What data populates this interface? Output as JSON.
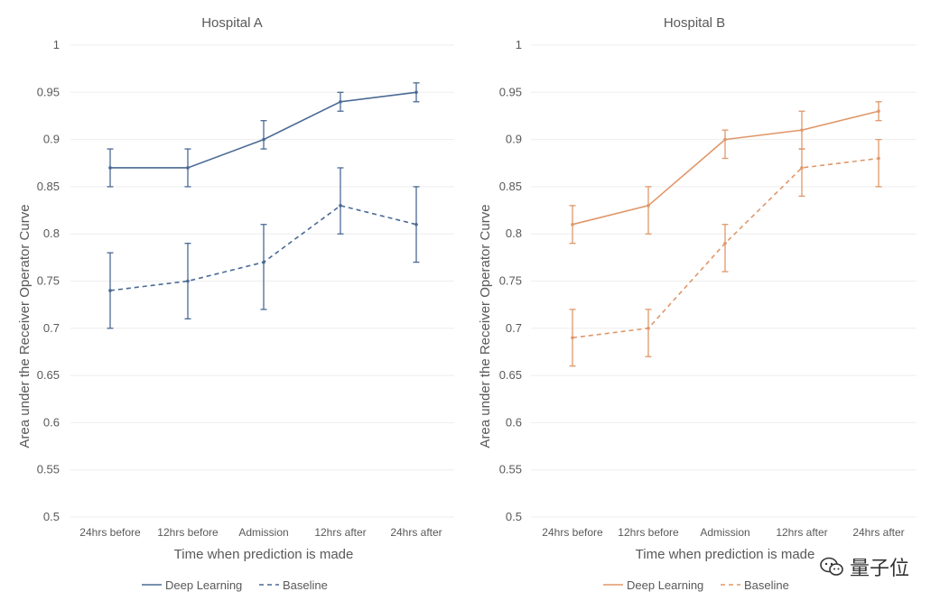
{
  "chart_data": [
    {
      "type": "line",
      "title": "Hospital A",
      "xlabel": "Time when prediction is made",
      "ylabel": "Area under the Receiver  Operator Curve",
      "ylim": [
        0.5,
        1
      ],
      "yticks": [
        "0.5",
        "0.55",
        "0.6",
        "0.65",
        "0.7",
        "0.75",
        "0.8",
        "0.85",
        "0.9",
        "0.95",
        "1"
      ],
      "categories": [
        "24hrs before",
        "12hrs before",
        "Admission",
        "12hrs after",
        "24hrs after"
      ],
      "grid": true,
      "legend_position": "bottom",
      "series": [
        {
          "name": "Deep Learning",
          "style": "solid",
          "color": "#4a6a94",
          "values": [
            0.87,
            0.87,
            0.9,
            0.94,
            0.95
          ],
          "err_low": [
            0.85,
            0.85,
            0.89,
            0.93,
            0.94
          ],
          "err_high": [
            0.89,
            0.89,
            0.92,
            0.95,
            0.96
          ]
        },
        {
          "name": "Baseline",
          "style": "dashed",
          "color": "#4a6a94",
          "values": [
            0.74,
            0.75,
            0.77,
            0.83,
            0.81
          ],
          "err_low": [
            0.7,
            0.71,
            0.72,
            0.8,
            0.77
          ],
          "err_high": [
            0.78,
            0.79,
            0.81,
            0.87,
            0.85
          ]
        }
      ]
    },
    {
      "type": "line",
      "title": "Hospital B",
      "xlabel": "Time when prediction is made",
      "ylabel": "Area under the Receiver  Operator Curve",
      "ylim": [
        0.5,
        1
      ],
      "yticks": [
        "0.5",
        "0.55",
        "0.6",
        "0.65",
        "0.7",
        "0.75",
        "0.8",
        "0.85",
        "0.9",
        "0.95",
        "1"
      ],
      "categories": [
        "24hrs before",
        "12hrs before",
        "Admission",
        "12hrs after",
        "24hrs after"
      ],
      "grid": true,
      "legend_position": "bottom",
      "series": [
        {
          "name": "Deep Learning",
          "style": "solid",
          "color": "#e0976a",
          "values": [
            0.81,
            0.83,
            0.9,
            0.91,
            0.93
          ],
          "err_low": [
            0.79,
            0.8,
            0.88,
            0.89,
            0.92
          ],
          "err_high": [
            0.83,
            0.85,
            0.91,
            0.93,
            0.94
          ]
        },
        {
          "name": "Baseline",
          "style": "dashed",
          "color": "#e0976a",
          "values": [
            0.69,
            0.7,
            0.79,
            0.87,
            0.88
          ],
          "err_low": [
            0.66,
            0.67,
            0.76,
            0.84,
            0.85
          ],
          "err_high": [
            0.72,
            0.72,
            0.81,
            0.89,
            0.9
          ]
        }
      ]
    }
  ],
  "watermark": {
    "text": "量子位",
    "icon": "wechat-icon"
  }
}
